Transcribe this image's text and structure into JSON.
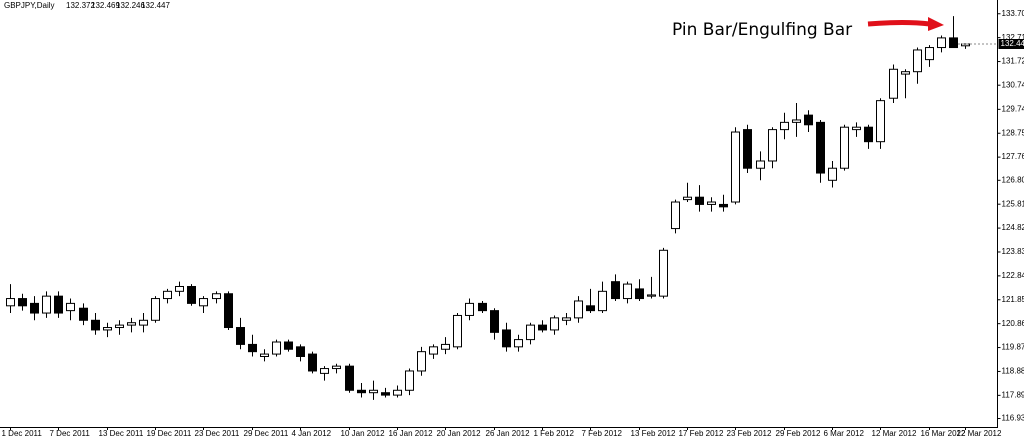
{
  "chart_data": {
    "type": "candlestick",
    "title": "GBPJPY,Daily",
    "annotation": "Pin Bar/Engulfing Bar",
    "up_color": "#ffffff",
    "down_color": "#000000",
    "ylim": [
      116.62,
      134.27
    ],
    "yticks": [
      {
        "value": 133.7,
        "label": "133.700"
      },
      {
        "value": 132.71,
        "label": "132.710"
      },
      {
        "value": 131.72,
        "label": "131.720"
      },
      {
        "value": 130.74,
        "label": "130.740"
      },
      {
        "value": 129.74,
        "label": "129.740"
      },
      {
        "value": 128.75,
        "label": "128.750"
      },
      {
        "value": 127.76,
        "label": "127.760"
      },
      {
        "value": 126.8,
        "label": "126.800"
      },
      {
        "value": 125.81,
        "label": "125.810"
      },
      {
        "value": 124.82,
        "label": "124.820"
      },
      {
        "value": 123.83,
        "label": "123.830"
      },
      {
        "value": 122.84,
        "label": "122.840"
      },
      {
        "value": 121.85,
        "label": "121.850"
      },
      {
        "value": 120.86,
        "label": "120.860"
      },
      {
        "value": 119.87,
        "label": "119.870"
      },
      {
        "value": 118.88,
        "label": "118.880"
      },
      {
        "value": 117.89,
        "label": "117.890"
      },
      {
        "value": 116.93,
        "label": "116.930"
      }
    ],
    "categories": [
      "1 Dec 2011",
      null,
      null,
      null,
      "7 Dec 2011",
      null,
      null,
      null,
      "13 Dec 2011",
      null,
      null,
      null,
      "19 Dec 2011",
      null,
      null,
      null,
      "23 Dec 2011",
      null,
      null,
      null,
      "29 Dec 2011",
      null,
      null,
      null,
      "4 Jan 2012",
      null,
      null,
      null,
      "10 Jan 2012",
      null,
      null,
      null,
      "16 Jan 2012",
      null,
      null,
      null,
      "20 Jan 2012",
      null,
      null,
      null,
      "26 Jan 2012",
      null,
      null,
      null,
      "1 Feb 2012",
      null,
      null,
      null,
      "7 Feb 2012",
      null,
      null,
      null,
      "13 Feb 2012",
      null,
      null,
      null,
      "17 Feb 2012",
      null,
      null,
      null,
      "23 Feb 2012",
      null,
      null,
      null,
      "29 Feb 2012",
      null,
      null,
      null,
      "6 Mar 2012",
      null,
      null,
      null,
      "12 Mar 2012",
      null,
      null,
      null,
      "16 Mar 2012",
      null,
      null,
      "22 Mar 2012"
    ],
    "open": [
      121.6,
      121.9,
      121.7,
      121.3,
      122.0,
      121.4,
      121.5,
      121.0,
      120.6,
      120.7,
      120.8,
      120.8,
      121.0,
      121.9,
      122.2,
      122.4,
      121.6,
      121.9,
      122.1,
      120.7,
      120.0,
      119.5,
      119.6,
      120.1,
      119.9,
      119.6,
      118.8,
      119.0,
      119.1,
      118.1,
      118.0,
      118.0,
      117.9,
      118.1,
      118.9,
      119.6,
      119.8,
      119.9,
      121.2,
      121.7,
      121.4,
      120.6,
      119.9,
      120.2,
      120.8,
      120.6,
      121.0,
      121.1,
      121.6,
      121.4,
      122.6,
      121.9,
      122.3,
      122.0,
      122.0,
      124.8,
      126.0,
      126.1,
      125.8,
      125.8,
      125.9,
      128.9,
      127.3,
      127.6,
      128.9,
      129.2,
      129.5,
      129.2,
      126.8,
      127.3,
      128.9,
      129.0,
      128.4,
      130.2,
      131.2,
      131.3,
      131.8,
      132.3,
      132.7,
      132.372
    ],
    "high": [
      122.5,
      122.1,
      122.0,
      122.2,
      122.2,
      121.9,
      121.7,
      121.3,
      120.9,
      121.0,
      121.1,
      121.3,
      122.0,
      122.3,
      122.6,
      122.5,
      122.0,
      122.2,
      122.2,
      121.1,
      120.4,
      119.8,
      120.2,
      120.2,
      120.0,
      119.7,
      119.1,
      119.2,
      119.2,
      118.4,
      118.5,
      118.2,
      118.3,
      119.0,
      119.9,
      120.0,
      120.3,
      121.3,
      121.9,
      121.8,
      121.5,
      120.9,
      120.4,
      120.9,
      121.0,
      121.2,
      121.3,
      122.0,
      122.3,
      122.6,
      122.9,
      122.6,
      122.7,
      122.8,
      124.0,
      126.0,
      126.7,
      126.6,
      126.1,
      126.2,
      129.0,
      129.1,
      128.0,
      129.0,
      129.6,
      130.0,
      129.7,
      129.3,
      127.6,
      129.1,
      129.2,
      129.1,
      130.2,
      131.6,
      131.4,
      132.3,
      132.4,
      132.8,
      133.6,
      132.469
    ],
    "low": [
      121.3,
      121.4,
      121.0,
      121.1,
      121.1,
      121.0,
      120.8,
      120.4,
      120.3,
      120.4,
      120.5,
      120.5,
      120.9,
      121.7,
      122.0,
      121.6,
      121.3,
      121.7,
      120.6,
      119.8,
      119.5,
      119.3,
      119.5,
      119.7,
      119.3,
      118.8,
      118.5,
      118.8,
      118.0,
      117.8,
      117.7,
      117.8,
      117.8,
      117.9,
      118.7,
      119.4,
      119.6,
      119.8,
      121.0,
      121.3,
      120.2,
      119.7,
      119.7,
      120.0,
      120.5,
      120.4,
      120.8,
      120.9,
      121.3,
      121.3,
      121.8,
      121.7,
      121.8,
      121.9,
      121.9,
      124.6,
      125.9,
      125.5,
      125.5,
      125.5,
      125.8,
      127.1,
      126.8,
      127.3,
      128.5,
      128.6,
      128.8,
      126.7,
      126.5,
      127.2,
      128.6,
      128.1,
      128.1,
      130.0,
      130.2,
      130.8,
      131.5,
      132.1,
      132.3,
      132.246
    ],
    "close": [
      121.9,
      121.6,
      121.3,
      122.0,
      121.3,
      121.7,
      121.0,
      120.6,
      120.7,
      120.8,
      120.9,
      121.0,
      121.9,
      122.2,
      122.4,
      121.7,
      121.9,
      122.1,
      120.7,
      120.0,
      119.7,
      119.6,
      120.1,
      119.8,
      119.5,
      118.9,
      119.0,
      119.1,
      118.1,
      118.0,
      118.1,
      117.9,
      118.1,
      118.9,
      119.7,
      119.9,
      120.0,
      121.2,
      121.7,
      121.4,
      120.5,
      119.9,
      120.2,
      120.8,
      120.6,
      121.1,
      121.1,
      121.8,
      121.4,
      122.2,
      121.9,
      122.5,
      121.9,
      122.05,
      123.9,
      125.9,
      126.1,
      125.8,
      125.9,
      125.7,
      128.8,
      127.3,
      127.6,
      128.9,
      129.2,
      129.3,
      129.1,
      127.1,
      127.3,
      129.0,
      129.0,
      128.4,
      130.1,
      131.4,
      131.3,
      132.2,
      132.3,
      132.7,
      132.3,
      132.447
    ]
  }
}
